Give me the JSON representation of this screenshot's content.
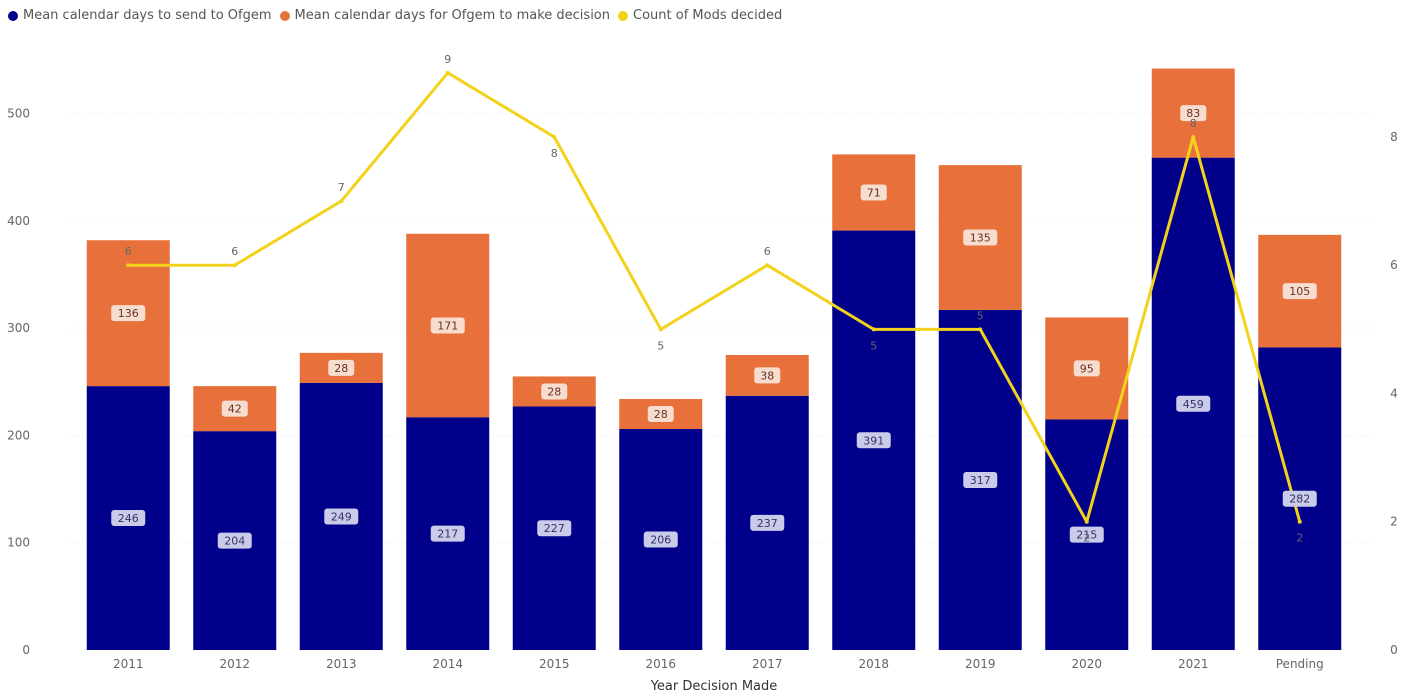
{
  "colors": {
    "send": "#00008b",
    "decision": "#e8703a",
    "count": "#f2d21b",
    "grid": "#eeeeee",
    "label_bg_send": "#c9cbe8",
    "label_bg_decision": "#f7ddcf"
  },
  "chart_data": {
    "type": "bar",
    "stacked": true,
    "title": "",
    "xlabel": "Year Decision Made",
    "ylabel": "",
    "ylim": [
      0,
      550
    ],
    "y2lim": [
      0,
      9.2
    ],
    "grid": true,
    "legend_position": "top-left",
    "categories": [
      "2011",
      "2012",
      "2013",
      "2014",
      "2015",
      "2016",
      "2017",
      "2018",
      "2019",
      "2020",
      "2021",
      "Pending"
    ],
    "yticks": [
      "0",
      "100",
      "200",
      "300",
      "400",
      "500"
    ],
    "y2ticks": [
      "0",
      "2",
      "4",
      "6",
      "8"
    ],
    "series": [
      {
        "name": "Mean calendar days to send to Ofgem",
        "kind": "bar",
        "axis": "left",
        "color_key": "send",
        "values": [
          246,
          204,
          249,
          217,
          227,
          206,
          237,
          391,
          317,
          215,
          459,
          282
        ]
      },
      {
        "name": "Mean calendar days for Ofgem to make decision",
        "kind": "bar",
        "axis": "left",
        "color_key": "decision",
        "values": [
          136,
          42,
          28,
          171,
          28,
          28,
          38,
          71,
          135,
          95,
          83,
          105
        ]
      },
      {
        "name": "Count of Mods decided",
        "kind": "line",
        "axis": "right",
        "color_key": "count",
        "values": [
          6,
          6,
          7,
          9,
          8,
          5,
          6,
          5,
          5,
          2,
          8,
          2
        ]
      }
    ]
  }
}
